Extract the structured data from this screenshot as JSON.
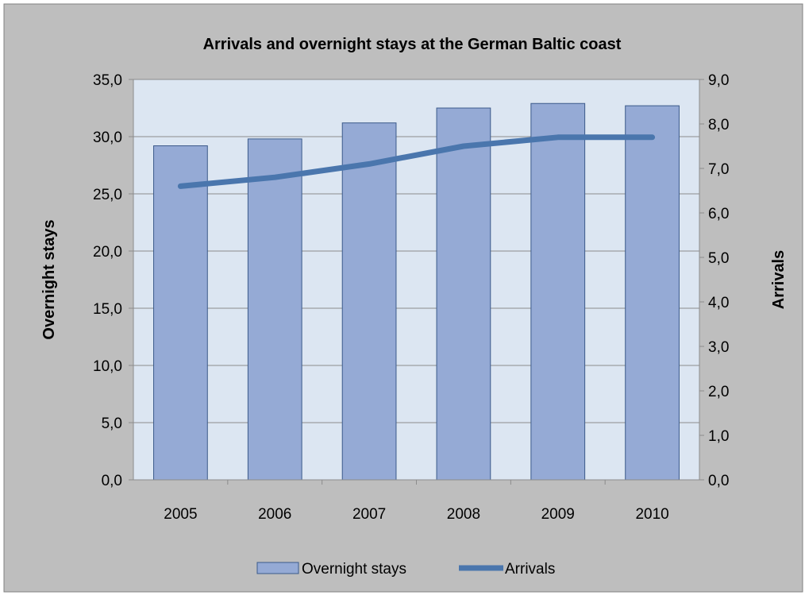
{
  "chart_data": {
    "type": "bar",
    "title": "Arrivals and overnight stays at the German Baltic coast",
    "categories": [
      "2005",
      "2006",
      "2007",
      "2008",
      "2009",
      "2010"
    ],
    "series": [
      {
        "name": "Overnight stays",
        "type": "bar",
        "axis": "left",
        "values": [
          29.2,
          29.8,
          31.2,
          32.5,
          32.9,
          32.7
        ],
        "color": "#95aad5"
      },
      {
        "name": "Arrivals",
        "type": "line",
        "axis": "right",
        "values": [
          6.6,
          6.8,
          7.1,
          7.5,
          7.7,
          7.7
        ],
        "color": "#4a76ad"
      }
    ],
    "ylabel": "Overnight stays",
    "y2label": "Arrivals",
    "ylim": [
      0,
      35
    ],
    "y2lim": [
      0,
      9
    ],
    "yticks": [
      "0,0",
      "5,0",
      "10,0",
      "15,0",
      "20,0",
      "25,0",
      "30,0",
      "35,0"
    ],
    "y2ticks": [
      "0,0",
      "1,0",
      "2,0",
      "3,0",
      "4,0",
      "5,0",
      "6,0",
      "7,0",
      "8,0",
      "9,0"
    ],
    "grid": true,
    "legend_position": "bottom",
    "colors": {
      "chart_area": "#bebebe",
      "plot_area": "#dce6f2",
      "bar_fill": "#95aad5",
      "bar_stroke": "#3b5a8a",
      "line": "#4a76ad"
    }
  }
}
